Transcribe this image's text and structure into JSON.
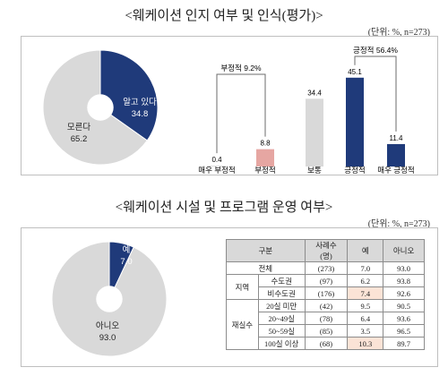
{
  "section1": {
    "title": "<웨케이션 인지 여부 및 인식(평가)>",
    "unit": "(단위: %, n=273)"
  },
  "section2": {
    "title": "<웨케이션 시설 및 프로그램 운영 여부>",
    "unit": "(단위: %, n=273)"
  },
  "colors": {
    "navy": "#1f3a7a",
    "gray": "#d9d9d9",
    "pink": "#e6a6a2",
    "line": "#6b6b6b"
  },
  "chart_data": [
    {
      "type": "pie",
      "labels": [
        "알고 있다",
        "모른다"
      ],
      "values": [
        34.8,
        65.2
      ],
      "colors": [
        "#1f3a7a",
        "#d9d9d9"
      ]
    },
    {
      "type": "bar",
      "categories": [
        "매우 부정적",
        "부정적",
        "보통",
        "긍정적",
        "매우 긍정적"
      ],
      "values": [
        0.4,
        8.8,
        34.4,
        45.1,
        11.4
      ],
      "colors": [
        "#d9d9d9",
        "#e6a6a2",
        "#d9d9d9",
        "#1f3a7a",
        "#1f3a7a"
      ],
      "annotations": [
        {
          "label": "부정적 9.2%",
          "spans": [
            "매우 부정적",
            "부정적"
          ]
        },
        {
          "label": "긍정적 56.4%",
          "spans": [
            "긍정적",
            "매우 긍정적"
          ]
        }
      ]
    },
    {
      "type": "pie",
      "labels": [
        "예",
        "아니오"
      ],
      "values": [
        7.0,
        93.0
      ],
      "colors": [
        "#1f3a7a",
        "#d9d9d9"
      ]
    },
    {
      "type": "table",
      "header": [
        "구분",
        "사례수\n(명)",
        "예",
        "아니오"
      ],
      "rows": [
        {
          "group": "",
          "sub": "전체",
          "n": "(273)",
          "yes": "7.0",
          "no": "93.0",
          "hl": false
        },
        {
          "group": "지역",
          "sub": "수도권",
          "n": "(97)",
          "yes": "6.2",
          "no": "93.8",
          "hl": false
        },
        {
          "group": "지역",
          "sub": "비수도권",
          "n": "(176)",
          "yes": "7.4",
          "no": "92.6",
          "hl": true
        },
        {
          "group": "재실수",
          "sub": "20실 미만",
          "n": "(42)",
          "yes": "9.5",
          "no": "90.5",
          "hl": false
        },
        {
          "group": "재실수",
          "sub": "20~49실",
          "n": "(78)",
          "yes": "6.4",
          "no": "93.6",
          "hl": false
        },
        {
          "group": "재실수",
          "sub": "50~59실",
          "n": "(85)",
          "yes": "3.5",
          "no": "96.5",
          "hl": false
        },
        {
          "group": "재실수",
          "sub": "100실 이상",
          "n": "(68)",
          "yes": "10.3",
          "no": "89.7",
          "hl": true
        }
      ]
    }
  ]
}
